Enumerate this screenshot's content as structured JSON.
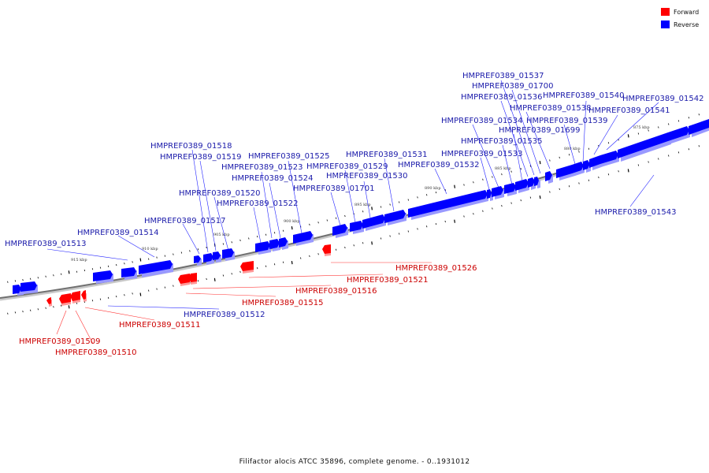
{
  "caption": "Filifactor alocis ATCC 35896, complete genome. - 0..1931012",
  "legend": [
    {
      "label": "Forward",
      "color": "#ff0000"
    },
    {
      "label": "Reverse",
      "color": "#0000ff"
    }
  ],
  "colors": {
    "forward": "#ff0000",
    "reverse": "#0000ff",
    "backbone": "#808080"
  },
  "scale_labels": [
    "915 kbp",
    "910 kbp",
    "905 kbp",
    "900 kbp",
    "895 kbp",
    "890 kbp",
    "885 kbp",
    "880 kbp",
    "875 kbp"
  ],
  "forward_genes": [
    "HMPREF0389_01509",
    "HMPREF0389_01510",
    "HMPREF0389_01511",
    "HMPREF0389_01515",
    "HMPREF0389_01516",
    "HMPREF0389_01521",
    "HMPREF0389_01526"
  ],
  "reverse_genes": [
    "HMPREF0389_01512",
    "HMPREF0389_01513",
    "HMPREF0389_01514",
    "HMPREF0389_01517",
    "HMPREF0389_01518",
    "HMPREF0389_01519",
    "HMPREF0389_01520",
    "HMPREF0389_01522",
    "HMPREF0389_01523",
    "HMPREF0389_01524",
    "HMPREF0389_01525",
    "HMPREF0389_01701",
    "HMPREF0389_01529",
    "HMPREF0389_01530",
    "HMPREF0389_01531",
    "HMPREF0389_01532",
    "HMPREF0389_01533",
    "HMPREF0389_01534",
    "HMPREF0389_01535",
    "HMPREF0389_01699",
    "HMPREF0389_01536",
    "HMPREF0389_01537",
    "HMPREF0389_01700",
    "HMPREF0389_01538",
    "HMPREF0389_01539",
    "HMPREF0389_01540",
    "HMPREF0389_01541",
    "HMPREF0389_01542",
    "HMPREF0389_01543"
  ]
}
